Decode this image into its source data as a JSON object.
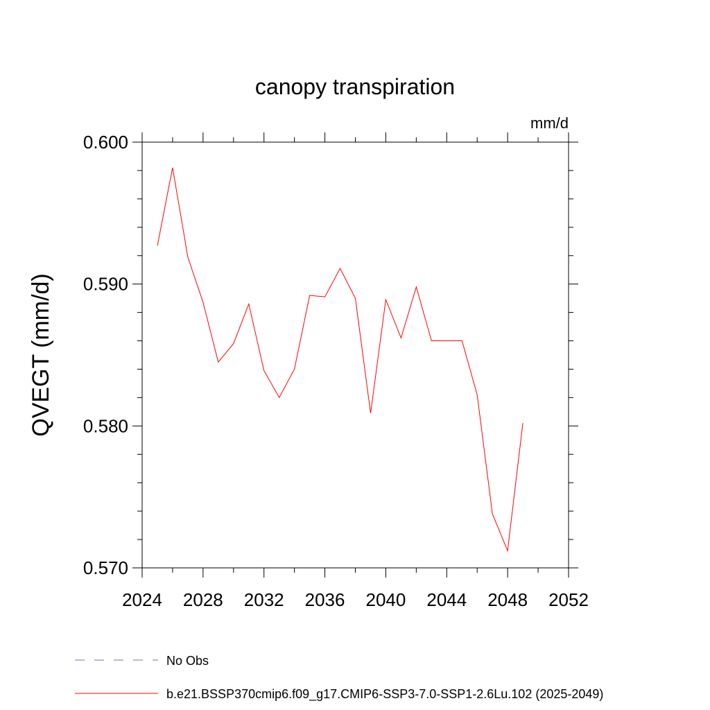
{
  "chart_data": {
    "type": "line",
    "title": "canopy transpiration",
    "units": "mm/d",
    "ylabel": "QVEGT  (mm/d)",
    "xlabel": "",
    "xlim": [
      2024,
      2052
    ],
    "ylim": [
      0.57,
      0.6
    ],
    "x_ticks": [
      2024,
      2028,
      2032,
      2036,
      2040,
      2044,
      2048,
      2052
    ],
    "x_tick_labels": [
      "2024",
      "2028",
      "2032",
      "2036",
      "2040",
      "2044",
      "2048",
      "2052"
    ],
    "y_ticks": [
      0.57,
      0.58,
      0.59,
      0.6
    ],
    "y_tick_labels": [
      "0.570",
      "0.580",
      "0.590",
      "0.600"
    ],
    "grid": false,
    "legend_position": "bottom",
    "legend": [
      {
        "label": "No Obs",
        "color": "#7a6fb3",
        "dash": "dashed"
      },
      {
        "label": "b.e21.BSSP370cmip6.f09_g17.CMIP6-SSP3-7.0-SSP1-2.6Lu.102 (2025-2049)",
        "color": "#ff0000",
        "dash": "solid"
      }
    ],
    "series": [
      {
        "name": "b.e21.BSSP370cmip6.f09_g17.CMIP6-SSP3-7.0-SSP1-2.6Lu.102 (2025-2049)",
        "color": "#ff0000",
        "x": [
          2025,
          2026,
          2027,
          2028,
          2029,
          2030,
          2031,
          2032,
          2033,
          2034,
          2035,
          2036,
          2037,
          2038,
          2039,
          2040,
          2041,
          2042,
          2043,
          2044,
          2045,
          2046,
          2047,
          2048,
          2049
        ],
        "values": [
          0.5927,
          0.5982,
          0.5919,
          0.5887,
          0.5845,
          0.5858,
          0.5886,
          0.5839,
          0.582,
          0.584,
          0.5892,
          0.5891,
          0.5911,
          0.589,
          0.5809,
          0.5889,
          0.5862,
          0.5898,
          0.586,
          0.586,
          0.586,
          0.5822,
          0.5738,
          0.5712,
          0.5802
        ]
      }
    ]
  }
}
